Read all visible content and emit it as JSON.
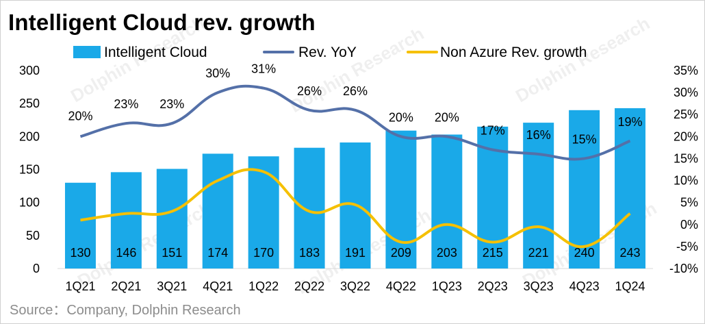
{
  "title": "Intelligent Cloud rev. growth",
  "source": "Source：Company, Dolphin Research",
  "watermark": "Dolphin Research",
  "chart_data": {
    "type": "bar",
    "categories": [
      "1Q21",
      "2Q21",
      "3Q21",
      "4Q21",
      "1Q22",
      "2Q22",
      "3Q22",
      "4Q22",
      "1Q23",
      "2Q23",
      "3Q23",
      "4Q23",
      "1Q24"
    ],
    "series": [
      {
        "name": "Intelligent Cloud",
        "type": "bar",
        "axis": "left",
        "color": "#1aa9e8",
        "values": [
          130,
          146,
          151,
          174,
          170,
          183,
          191,
          209,
          203,
          215,
          221,
          240,
          243
        ],
        "labels": [
          "130",
          "146",
          "151",
          "174",
          "170",
          "183",
          "191",
          "209",
          "203",
          "215",
          "221",
          "240",
          "243"
        ]
      },
      {
        "name": "Rev. YoY",
        "type": "line",
        "axis": "right",
        "color": "#5470a8",
        "values": [
          20,
          23,
          23,
          30,
          31,
          26,
          26,
          20,
          20,
          17,
          16,
          15,
          19
        ],
        "labels": [
          "20%",
          "23%",
          "23%",
          "30%",
          "31%",
          "26%",
          "26%",
          "20%",
          "20%",
          "17%",
          "16%",
          "15%",
          "19%"
        ]
      },
      {
        "name": "Non Azure Rev. growth",
        "type": "line",
        "axis": "right",
        "color": "#f5c000",
        "values": [
          1,
          2.5,
          3,
          10,
          12,
          3,
          4.5,
          -4,
          0,
          -4,
          -0.5,
          -5,
          2.5
        ]
      }
    ],
    "y_left": {
      "ticks": [
        "0",
        "50",
        "100",
        "150",
        "200",
        "250",
        "300"
      ],
      "min": 0,
      "max": 300
    },
    "y_right": {
      "ticks": [
        "-10%",
        "-5%",
        "0%",
        "5%",
        "10%",
        "15%",
        "20%",
        "25%",
        "30%",
        "35%"
      ],
      "min": -10,
      "max": 35
    },
    "legend_position": "top",
    "grid": false
  }
}
